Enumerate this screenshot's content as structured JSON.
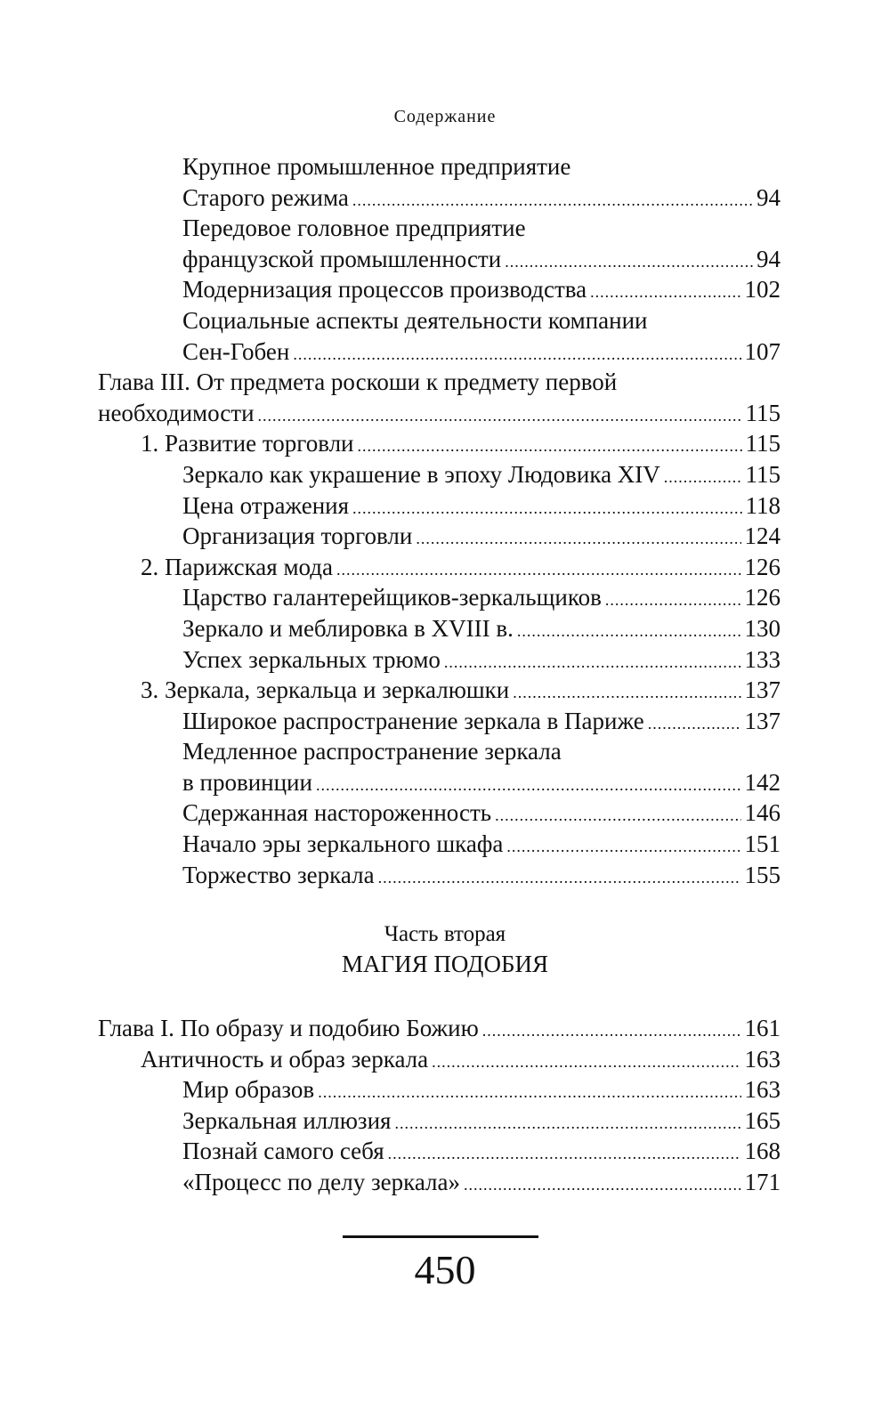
{
  "running_head": "Содержание",
  "toc_a": [
    {
      "level": 2,
      "lines": [
        "Крупное промышленное предприятие",
        "Старого режима"
      ],
      "page": "94"
    },
    {
      "level": 2,
      "lines": [
        "Передовое головное предприятие",
        "французской промышленности"
      ],
      "page": "94"
    },
    {
      "level": 2,
      "lines": [
        "Модернизация процессов производства"
      ],
      "page": "102"
    },
    {
      "level": 2,
      "lines": [
        "Социальные аспекты деятельности компании",
        "Сен-Гобен"
      ],
      "page": "107"
    },
    {
      "level": 0,
      "lines": [
        "Глава III. От предмета роскоши к предмету первой",
        "необходимости"
      ],
      "page": "115"
    },
    {
      "level": 1,
      "lines": [
        "1. Развитие торговли"
      ],
      "page": "115"
    },
    {
      "level": 2,
      "lines": [
        "Зеркало как украшение в эпоху Людовика XIV"
      ],
      "page": "115"
    },
    {
      "level": 2,
      "lines": [
        "Цена отражения"
      ],
      "page": "118"
    },
    {
      "level": 2,
      "lines": [
        "Организация торговли"
      ],
      "page": "124"
    },
    {
      "level": 1,
      "lines": [
        "2. Парижская мода"
      ],
      "page": "126"
    },
    {
      "level": 2,
      "lines": [
        "Царство галантерейщиков-зеркальщиков"
      ],
      "page": "126"
    },
    {
      "level": 2,
      "lines": [
        "Зеркало и меблировка в XVIII в."
      ],
      "page": "130"
    },
    {
      "level": 2,
      "lines": [
        "Успех зеркальных трюмо"
      ],
      "page": "133"
    },
    {
      "level": 1,
      "lines": [
        "3. Зеркала, зеркальца и зеркалюшки"
      ],
      "page": "137"
    },
    {
      "level": 2,
      "lines": [
        "Широкое распространение зеркала в Париже"
      ],
      "page": "137"
    },
    {
      "level": 2,
      "lines": [
        "Медленное распространение зеркала",
        "в провинции"
      ],
      "page": "142"
    },
    {
      "level": 2,
      "lines": [
        "Сдержанная настороженность"
      ],
      "page": "146"
    },
    {
      "level": 2,
      "lines": [
        "Начало эры зеркального шкафа"
      ],
      "page": "151"
    },
    {
      "level": 2,
      "lines": [
        "Торжество зеркала"
      ],
      "page": "155"
    }
  ],
  "part": {
    "label": "Часть вторая",
    "title": "МАГИЯ ПОДОБИЯ"
  },
  "toc_b": [
    {
      "level": 0,
      "lines": [
        "Глава I. По образу и подобию Божию"
      ],
      "page": "161"
    },
    {
      "level": 1,
      "lines": [
        "Античность и образ зеркала"
      ],
      "page": "163"
    },
    {
      "level": 2,
      "lines": [
        "Мир образов"
      ],
      "page": "163"
    },
    {
      "level": 2,
      "lines": [
        "Зеркальная иллюзия"
      ],
      "page": "165"
    },
    {
      "level": 2,
      "lines": [
        "Познай самого себя"
      ],
      "page": "168"
    },
    {
      "level": 2,
      "lines": [
        "«Процесс по делу зеркала»"
      ],
      "page": "171"
    }
  ],
  "page_number": "450"
}
